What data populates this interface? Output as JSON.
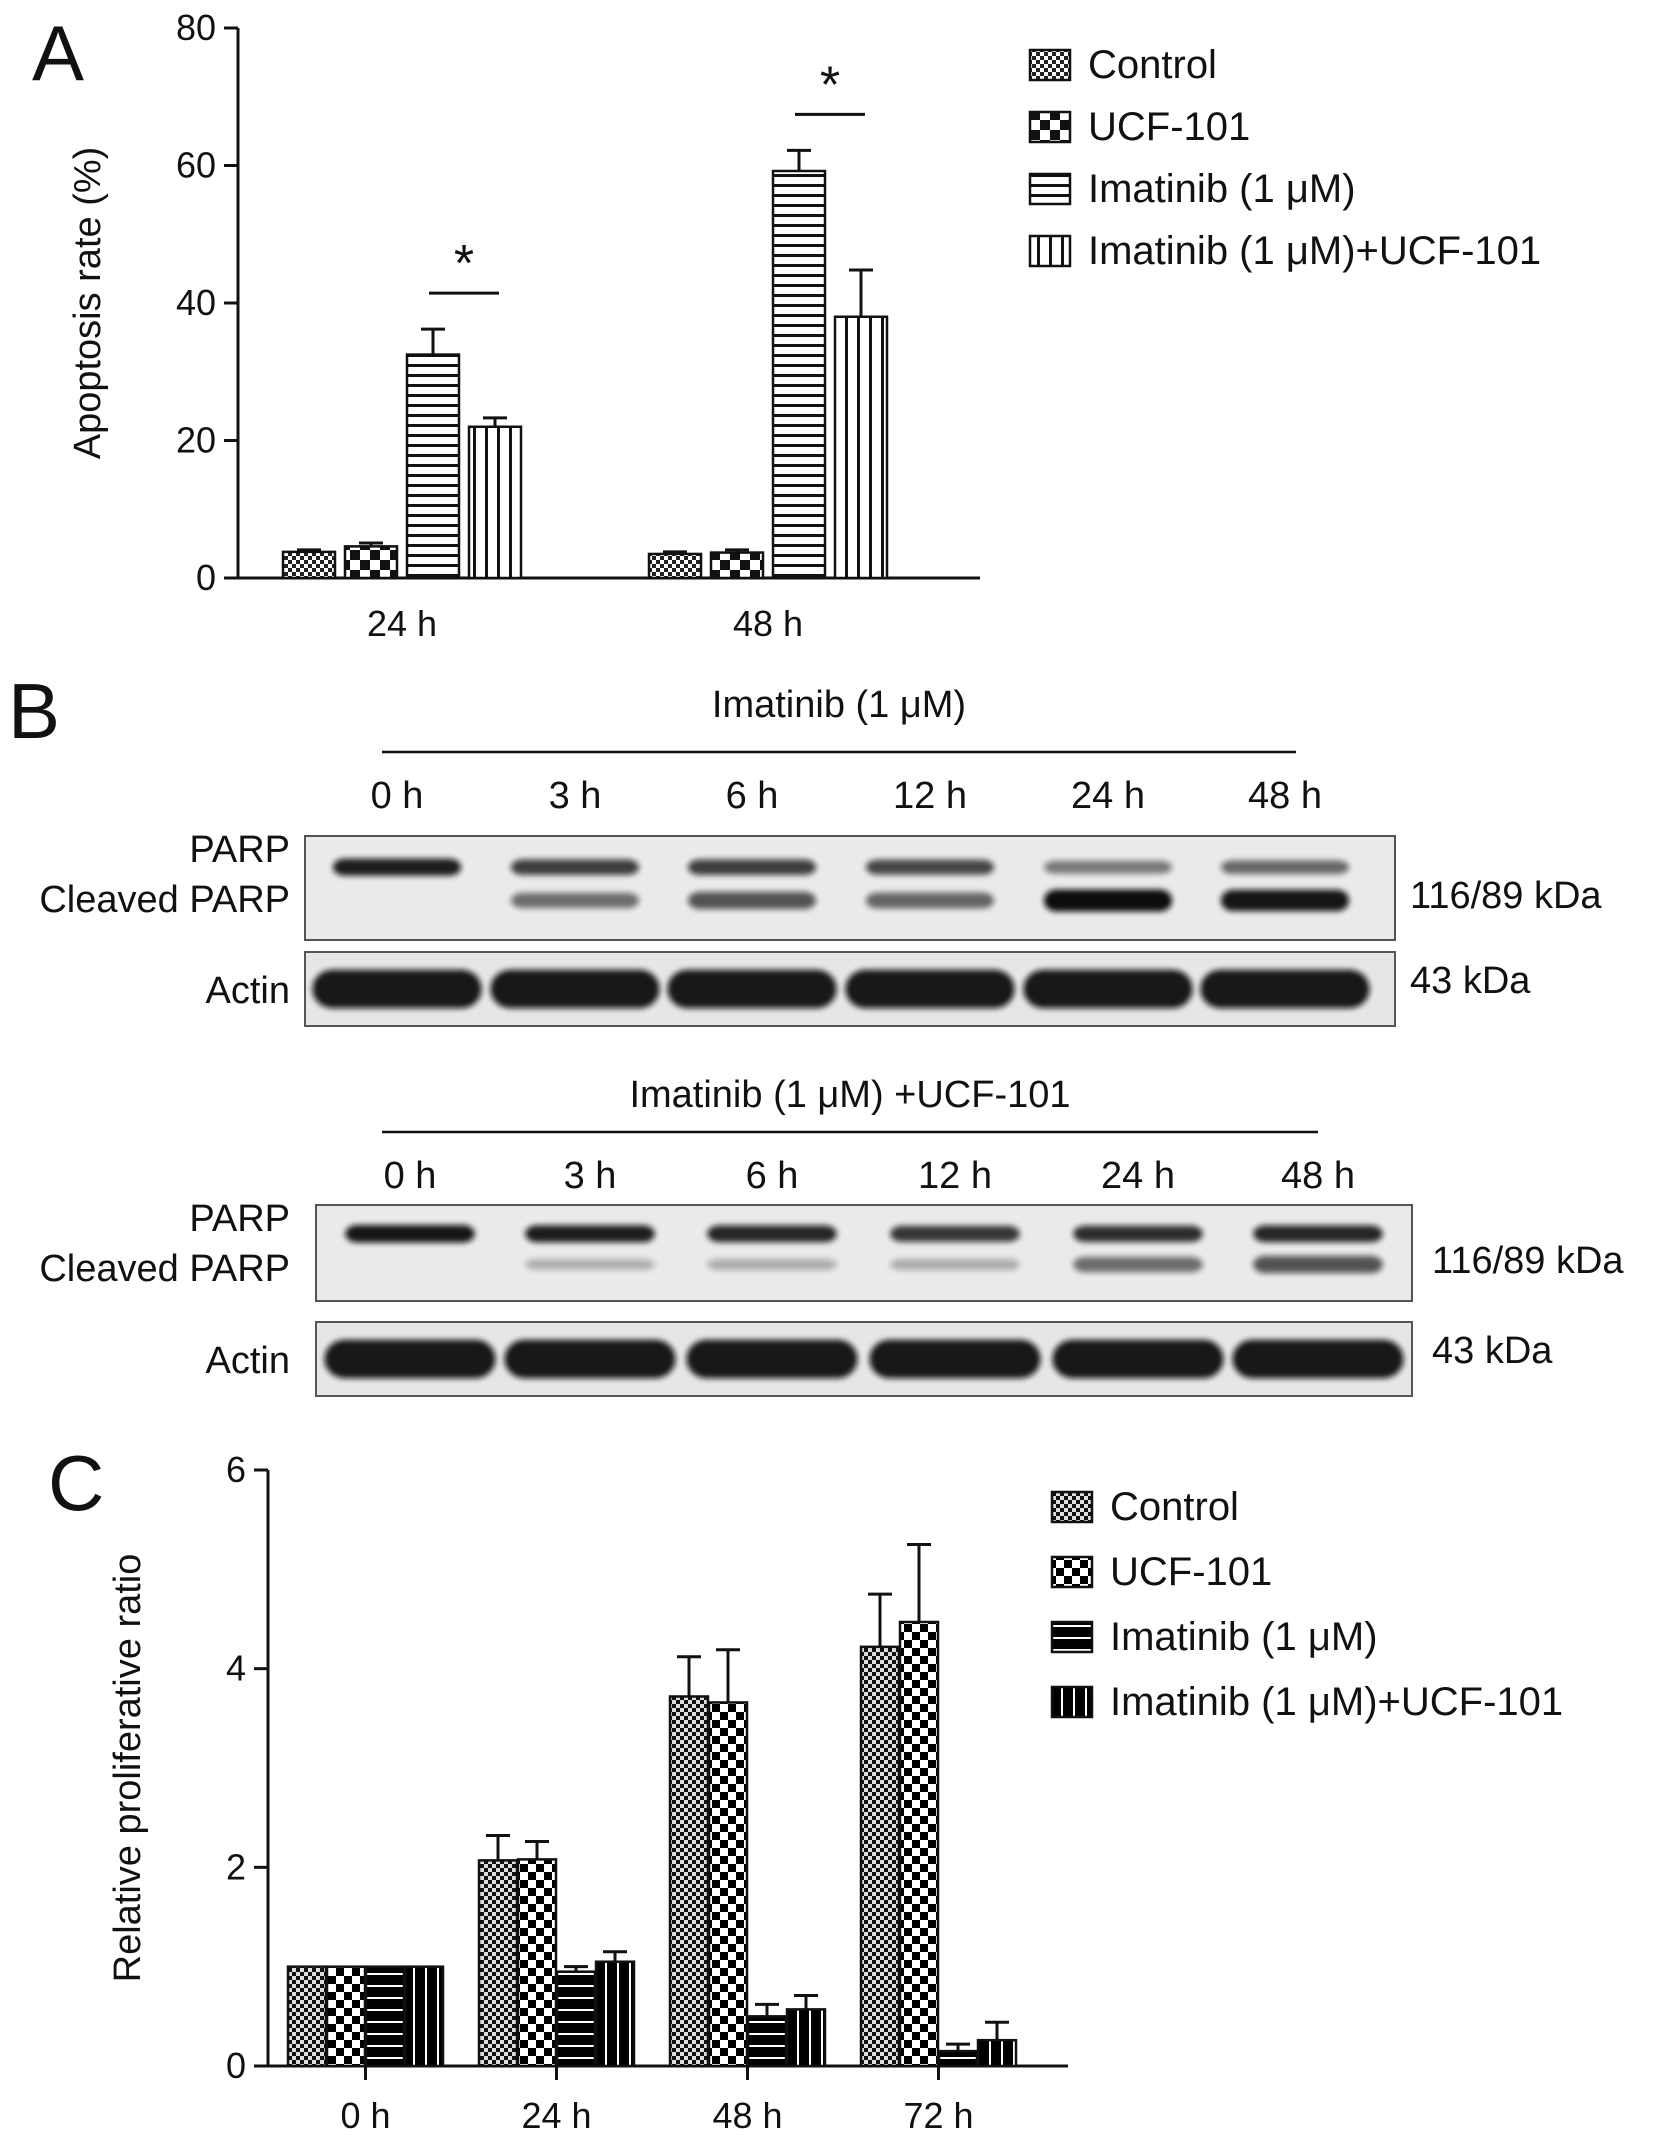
{
  "panels": {
    "a": "A",
    "b": "B",
    "c": "C"
  },
  "chart_data": [
    {
      "panel": "A",
      "type": "bar",
      "categories": [
        "24 h",
        "48 h"
      ],
      "ylabel": "Apoptosis rate (%)",
      "ylim": [
        0,
        80
      ],
      "yticks": [
        0,
        20,
        40,
        60,
        80
      ],
      "legend_position": "top-right",
      "series": [
        {
          "name": "Control",
          "pattern": "fine-check",
          "values": [
            3.8,
            3.5
          ],
          "errors": [
            0.3,
            0.3
          ]
        },
        {
          "name": "UCF-101",
          "pattern": "coarse-check",
          "values": [
            4.6,
            3.7
          ],
          "errors": [
            0.5,
            0.4
          ]
        },
        {
          "name": "Imatinib (1 μM)",
          "pattern": "horizontal-stripes",
          "values": [
            32.5,
            59.2
          ],
          "errors": [
            3.7,
            3.0
          ]
        },
        {
          "name": "Imatinib (1 μM)+UCF-101",
          "pattern": "vertical-stripes",
          "values": [
            22.0,
            38.0
          ],
          "errors": [
            1.3,
            6.8
          ]
        }
      ],
      "significance": [
        {
          "category": "24 h",
          "between": [
            "Imatinib (1 μM)",
            "Imatinib (1 μM)+UCF-101"
          ],
          "label": "*"
        },
        {
          "category": "48 h",
          "between": [
            "Imatinib (1 μM)",
            "Imatinib (1 μM)+UCF-101"
          ],
          "label": "*"
        }
      ]
    },
    {
      "panel": "C",
      "type": "bar",
      "categories": [
        "0 h",
        "24 h",
        "48 h",
        "72 h"
      ],
      "ylabel": "Relative proliferative ratio",
      "ylim": [
        0,
        6
      ],
      "yticks": [
        0,
        2,
        4,
        6
      ],
      "legend_position": "top-right",
      "series": [
        {
          "name": "Control",
          "pattern": "fine-check-dark",
          "values": [
            1.0,
            2.07,
            3.72,
            4.22
          ],
          "errors": [
            0,
            0.25,
            0.4,
            0.53
          ]
        },
        {
          "name": "UCF-101",
          "pattern": "coarse-check-dark",
          "values": [
            1.0,
            2.08,
            3.66,
            4.47
          ],
          "errors": [
            0,
            0.18,
            0.53,
            0.78
          ]
        },
        {
          "name": "Imatinib (1 μM)",
          "pattern": "horizontal-stripes-dark",
          "values": [
            1.0,
            0.95,
            0.5,
            0.15
          ],
          "errors": [
            0,
            0.05,
            0.12,
            0.07
          ]
        },
        {
          "name": "Imatinib (1 μM)+UCF-101",
          "pattern": "vertical-stripes-dark",
          "values": [
            1.0,
            1.05,
            0.57,
            0.26
          ],
          "errors": [
            0,
            0.1,
            0.14,
            0.18
          ]
        }
      ]
    }
  ],
  "blots": [
    {
      "title": "Imatinib (1 μM)",
      "timepoints": [
        "0 h",
        "3 h",
        "6 h",
        "12 h",
        "24 h",
        "48 h"
      ],
      "parp_label": "PARP",
      "cleaved_label": "Cleaved PARP",
      "actin_label": "Actin",
      "parp_kda": "116/89 kDa",
      "actin_kda": "43 kDa",
      "parp_intensity": [
        0.9,
        0.7,
        0.7,
        0.65,
        0.35,
        0.45
      ],
      "cleaved_intensity": [
        0.0,
        0.45,
        0.6,
        0.5,
        1.0,
        0.95
      ]
    },
    {
      "title": "Imatinib (1 μM) +UCF-101",
      "timepoints": [
        "0 h",
        "3 h",
        "6 h",
        "12 h",
        "24 h",
        "48 h"
      ],
      "parp_label": "PARP",
      "cleaved_label": "Cleaved PARP",
      "actin_label": "Actin",
      "parp_kda": "116/89 kDa",
      "actin_kda": "43 kDa",
      "parp_intensity": [
        0.95,
        0.9,
        0.85,
        0.75,
        0.8,
        0.85
      ],
      "cleaved_intensity": [
        0.0,
        0.08,
        0.1,
        0.1,
        0.45,
        0.6
      ]
    }
  ]
}
